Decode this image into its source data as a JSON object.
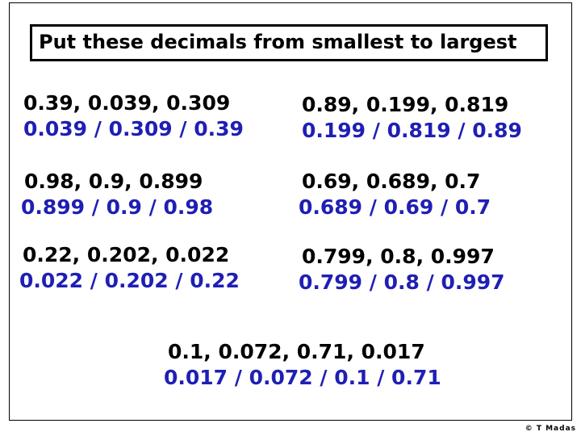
{
  "title": "Put these decimals from smallest to largest",
  "problems": [
    {
      "question": "0.39, 0.039, 0.309",
      "answer": "0.039 / 0.309 / 0.39"
    },
    {
      "question": "0.89, 0.199, 0.819",
      "answer": "0.199 / 0.819 / 0.89"
    },
    {
      "question": "0.98, 0.9, 0.899",
      "answer": "0.899 / 0.9 / 0.98"
    },
    {
      "question": "0.69, 0.689, 0.7",
      "answer": "0.689 / 0.69 / 0.7"
    },
    {
      "question": "0.22, 0.202, 0.022",
      "answer": "0.022 / 0.202 / 0.22"
    },
    {
      "question": "0.799, 0.8, 0.997",
      "answer": "0.799 / 0.8 / 0.997"
    },
    {
      "question": "0.1, 0.072, 0.71, 0.017",
      "answer": "0.017 / 0.072 / 0.1 / 0.71"
    }
  ],
  "copyright": "© T Madas",
  "colors": {
    "question": "#000000",
    "answer": "#1f1fb4"
  }
}
